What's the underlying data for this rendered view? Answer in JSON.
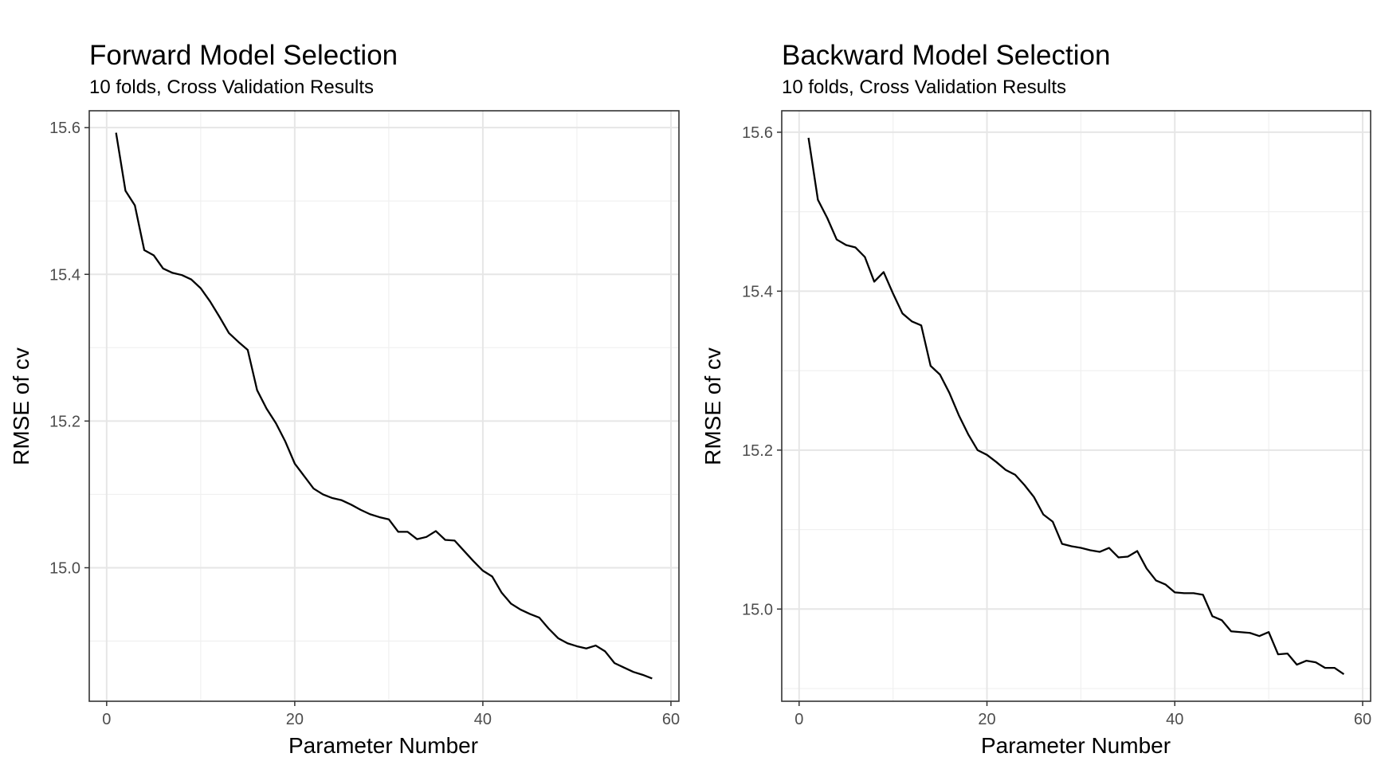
{
  "chart_data": [
    {
      "type": "line",
      "title": "Forward Model Selection",
      "subtitle": "10 folds, Cross Validation Results",
      "xlabel": "Parameter Number",
      "ylabel": "RMSE of cv",
      "xlim": [
        -1.85,
        60.85
      ],
      "ylim": [
        14.818,
        15.623
      ],
      "xticks": [
        0,
        20,
        40,
        60
      ],
      "yticks": [
        15.0,
        15.2,
        15.4,
        15.6
      ],
      "ytick_labels": [
        "15.0",
        "15.2",
        "15.4",
        "15.6"
      ],
      "grid": true,
      "series": [
        {
          "x": [
            1,
            2,
            3,
            4,
            5,
            6,
            7,
            8,
            9,
            10,
            11,
            12,
            13,
            14,
            15,
            16,
            17,
            18,
            19,
            20,
            21,
            22,
            23,
            24,
            25,
            26,
            27,
            28,
            29,
            30,
            31,
            32,
            33,
            34,
            35,
            36,
            37,
            38,
            39,
            40,
            41,
            42,
            43,
            44,
            45,
            46,
            47,
            48,
            49,
            50,
            51,
            52,
            53,
            54,
            55,
            56,
            57,
            58
          ],
          "y": [
            15.593,
            15.514,
            15.494,
            15.433,
            15.426,
            15.408,
            15.402,
            15.399,
            15.393,
            15.381,
            15.363,
            15.342,
            15.32,
            15.308,
            15.297,
            15.242,
            15.217,
            15.197,
            15.172,
            15.142,
            15.125,
            15.108,
            15.1,
            15.095,
            15.092,
            15.086,
            15.079,
            15.073,
            15.069,
            15.066,
            15.049,
            15.049,
            15.039,
            15.042,
            15.05,
            15.038,
            15.037,
            15.023,
            15.009,
            14.996,
            14.988,
            14.966,
            14.951,
            14.943,
            14.937,
            14.932,
            14.917,
            14.904,
            14.897,
            14.893,
            14.89,
            14.894,
            14.886,
            14.87,
            14.864,
            14.858,
            14.854,
            14.849
          ]
        }
      ]
    },
    {
      "type": "line",
      "title": "Backward Model Selection",
      "subtitle": "10 folds, Cross Validation Results",
      "xlabel": "Parameter Number",
      "ylabel": "RMSE of cv",
      "xlim": [
        -1.85,
        60.85
      ],
      "ylim": [
        14.884,
        15.627
      ],
      "xticks": [
        0,
        20,
        40,
        60
      ],
      "yticks": [
        15.0,
        15.2,
        15.4,
        15.6
      ],
      "ytick_labels": [
        "15.0",
        "15.2",
        "15.4",
        "15.6"
      ],
      "grid": true,
      "series": [
        {
          "x": [
            1,
            2,
            3,
            4,
            5,
            6,
            7,
            8,
            9,
            10,
            11,
            12,
            13,
            14,
            15,
            16,
            17,
            18,
            19,
            20,
            21,
            22,
            23,
            24,
            25,
            26,
            27,
            28,
            29,
            30,
            31,
            32,
            33,
            34,
            35,
            36,
            37,
            38,
            39,
            40,
            41,
            42,
            43,
            44,
            45,
            46,
            47,
            48,
            49,
            50,
            51,
            52,
            53,
            54,
            55,
            56,
            57,
            58
          ],
          "y": [
            15.593,
            15.515,
            15.492,
            15.465,
            15.458,
            15.455,
            15.443,
            15.412,
            15.424,
            15.397,
            15.372,
            15.362,
            15.357,
            15.306,
            15.295,
            15.272,
            15.244,
            15.22,
            15.2,
            15.194,
            15.185,
            15.175,
            15.169,
            15.156,
            15.141,
            15.119,
            15.11,
            15.082,
            15.079,
            15.077,
            15.074,
            15.072,
            15.077,
            15.065,
            15.066,
            15.073,
            15.051,
            15.036,
            15.031,
            15.021,
            15.02,
            15.02,
            15.018,
            14.991,
            14.986,
            14.972,
            14.971,
            14.97,
            14.966,
            14.971,
            14.943,
            14.944,
            14.93,
            14.935,
            14.933,
            14.926,
            14.926,
            14.918
          ]
        }
      ]
    }
  ]
}
